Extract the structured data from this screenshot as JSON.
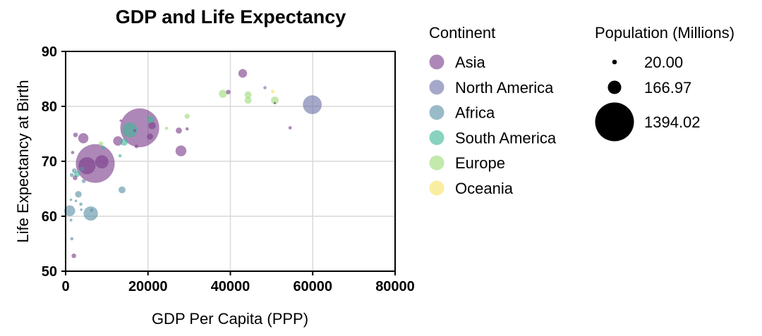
{
  "chart_data": {
    "type": "scatter",
    "title": "GDP and Life Expectancy",
    "xlabel": "GDP Per Capita  (PPP)",
    "ylabel": "Life Expectancy at Birth",
    "xlim": [
      0,
      80000
    ],
    "ylim": [
      50,
      90
    ],
    "xticks": [
      0,
      20000,
      40000,
      60000,
      80000
    ],
    "xtick_labels": [
      "0",
      "20000",
      "40000",
      "60000",
      "80000"
    ],
    "yticks": [
      50,
      60,
      70,
      80,
      90
    ],
    "ytick_labels": [
      "50",
      "60",
      "70",
      "80",
      "90"
    ],
    "grid": true,
    "legend_color": {
      "title": "Continent",
      "placement": "right",
      "entries": [
        {
          "label": "Asia",
          "color": "#7a3e8a"
        },
        {
          "label": "North America",
          "color": "#6e72a8"
        },
        {
          "label": "Africa",
          "color": "#5a8fa5"
        },
        {
          "label": "South America",
          "color": "#3fb897"
        },
        {
          "label": "Europe",
          "color": "#9edc7a"
        },
        {
          "label": "Oceania",
          "color": "#f5e466"
        }
      ]
    },
    "legend_size": {
      "title": "Population (Millions)",
      "placement": "far-right",
      "entries": [
        {
          "label": "20.00",
          "value": 20.0
        },
        {
          "label": "166.97",
          "value": 166.97
        },
        {
          "label": "1394.02",
          "value": 1394.02
        }
      ]
    },
    "series": [
      {
        "name": "Asia",
        "points": [
          {
            "x": 7200,
            "y": 69.6,
            "pop": 1394
          },
          {
            "x": 18000,
            "y": 76.1,
            "pop": 1400
          },
          {
            "x": 4300,
            "y": 74.2,
            "pop": 97
          },
          {
            "x": 5200,
            "y": 69.2,
            "pop": 270
          },
          {
            "x": 8800,
            "y": 69.9,
            "pop": 165
          },
          {
            "x": 12700,
            "y": 73.7,
            "pop": 84
          },
          {
            "x": 28000,
            "y": 71.9,
            "pop": 110
          },
          {
            "x": 21000,
            "y": 76.5,
            "pop": 50
          },
          {
            "x": 20500,
            "y": 74.5,
            "pop": 35
          },
          {
            "x": 27500,
            "y": 75.6,
            "pop": 35
          },
          {
            "x": 43000,
            "y": 86.0,
            "pop": 70
          },
          {
            "x": 39500,
            "y": 82.6,
            "pop": 20
          },
          {
            "x": 2400,
            "y": 74.8,
            "pop": 20
          },
          {
            "x": 2300,
            "y": 67.0,
            "pop": 20
          },
          {
            "x": 2000,
            "y": 52.8,
            "pop": 20
          },
          {
            "x": 1700,
            "y": 71.6,
            "pop": 10
          },
          {
            "x": 54500,
            "y": 76.1,
            "pop": 10
          },
          {
            "x": 29500,
            "y": 75.9,
            "pop": 10
          },
          {
            "x": 17200,
            "y": 72.7,
            "pop": 12
          },
          {
            "x": 13400,
            "y": 77.4,
            "pop": 6
          },
          {
            "x": 50800,
            "y": 80.6,
            "pop": 5
          },
          {
            "x": 16800,
            "y": 75.6,
            "pop": 6
          }
        ]
      },
      {
        "name": "North America",
        "points": [
          {
            "x": 59900,
            "y": 80.3,
            "pop": 330
          },
          {
            "x": 48400,
            "y": 83.4,
            "pop": 10
          }
        ]
      },
      {
        "name": "Africa",
        "points": [
          {
            "x": 6100,
            "y": 60.5,
            "pop": 190
          },
          {
            "x": 1000,
            "y": 61.0,
            "pop": 110
          },
          {
            "x": 3100,
            "y": 64.0,
            "pop": 40
          },
          {
            "x": 13700,
            "y": 64.8,
            "pop": 45
          },
          {
            "x": 1500,
            "y": 67.5,
            "pop": 15
          },
          {
            "x": 2100,
            "y": 68.3,
            "pop": 20
          },
          {
            "x": 4000,
            "y": 68.6,
            "pop": 20
          },
          {
            "x": 6300,
            "y": 61.1,
            "pop": 10
          },
          {
            "x": 3700,
            "y": 62.2,
            "pop": 10
          },
          {
            "x": 1500,
            "y": 55.9,
            "pop": 10
          },
          {
            "x": 1300,
            "y": 59.3,
            "pop": 8
          },
          {
            "x": 2500,
            "y": 62.8,
            "pop": 6
          },
          {
            "x": 4400,
            "y": 66.4,
            "pop": 15
          },
          {
            "x": 1300,
            "y": 63.0,
            "pop": 6
          },
          {
            "x": 3800,
            "y": 61.2,
            "pop": 6
          }
        ]
      },
      {
        "name": "South America",
        "points": [
          {
            "x": 15600,
            "y": 75.7,
            "pop": 210
          },
          {
            "x": 14200,
            "y": 73.5,
            "pop": 50
          },
          {
            "x": 13200,
            "y": 71.0,
            "pop": 10
          },
          {
            "x": 20600,
            "y": 77.6,
            "pop": 45
          },
          {
            "x": 9200,
            "y": 72.5,
            "pop": 10
          },
          {
            "x": 2800,
            "y": 67.7,
            "pop": 35
          }
        ]
      },
      {
        "name": "Europe",
        "points": [
          {
            "x": 38200,
            "y": 82.3,
            "pop": 60
          },
          {
            "x": 44300,
            "y": 82.1,
            "pop": 45
          },
          {
            "x": 44300,
            "y": 81.1,
            "pop": 45
          },
          {
            "x": 50800,
            "y": 81.1,
            "pop": 55
          },
          {
            "x": 29500,
            "y": 78.2,
            "pop": 25
          },
          {
            "x": 8600,
            "y": 73.2,
            "pop": 20
          },
          {
            "x": 24500,
            "y": 76.0,
            "pop": 10
          }
        ]
      },
      {
        "name": "Oceania",
        "points": [
          {
            "x": 50300,
            "y": 82.7,
            "pop": 12
          }
        ]
      }
    ]
  }
}
